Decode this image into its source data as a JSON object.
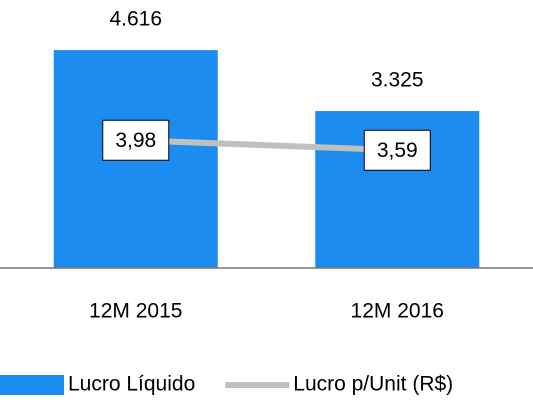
{
  "chart_data": {
    "type": "bar_line",
    "categories": [
      "12M 2015",
      "12M 2016"
    ],
    "series": [
      {
        "name": "Lucro Líquido",
        "type": "bar",
        "color": "#1c8cf0",
        "values": [
          4616,
          3325
        ],
        "value_labels": [
          "4.616",
          "3.325"
        ]
      },
      {
        "name": "Lucro p/Unit (R$)",
        "type": "line",
        "axis": "y2",
        "color": "#c0c0c0",
        "values": [
          3.98,
          3.59
        ],
        "value_labels": [
          "3,98",
          "3,59"
        ]
      }
    ],
    "ylim": [
      0,
      5000
    ],
    "y2lim": [
      -1,
      8.2
    ],
    "legend": "bottom"
  }
}
